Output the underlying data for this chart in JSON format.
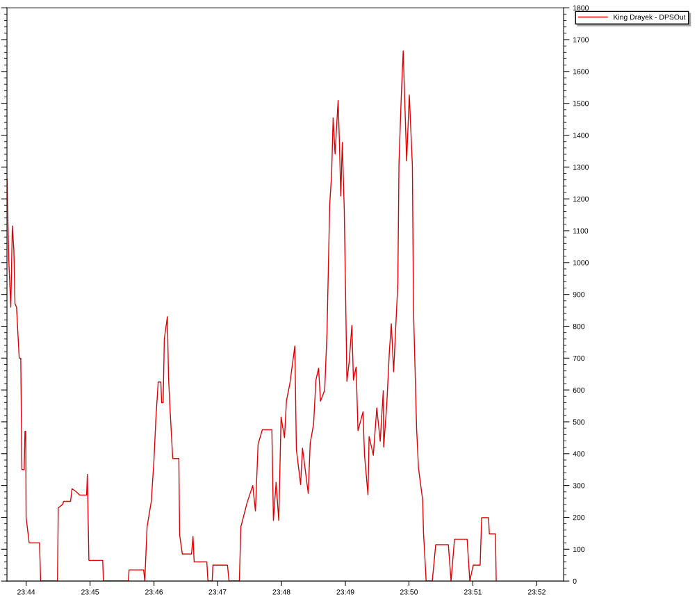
{
  "chart_data": {
    "type": "line",
    "x": [
      23.7283,
      23.7288,
      23.7293,
      23.7297,
      23.7301,
      23.7304,
      23.7308,
      23.7315,
      23.7319,
      23.7322,
      23.7328,
      23.733,
      23.7332,
      23.7333,
      23.7341,
      23.7368,
      23.7371,
      23.7415,
      23.7417,
      23.7428,
      23.7431,
      23.7449,
      23.7453,
      23.7464,
      23.7473,
      23.7491,
      23.7493,
      23.7497,
      23.7533,
      23.7535,
      23.76,
      23.7602,
      23.764,
      23.7643,
      23.7649,
      23.766,
      23.7667,
      23.7672,
      23.7678,
      23.7685,
      23.7687,
      23.7691,
      23.7694,
      23.7702,
      23.7705,
      23.7709,
      23.7716,
      23.7732,
      23.7734,
      23.7741,
      23.7765,
      23.7769,
      23.7772,
      23.7805,
      23.7808,
      23.7819,
      23.7821,
      23.7859,
      23.7863,
      23.789,
      23.7894,
      23.791,
      23.7925,
      23.7932,
      23.7939,
      23.795,
      23.7975,
      23.7979,
      23.7986,
      23.7993,
      23.7999,
      23.8008,
      23.8013,
      23.8022,
      23.8035,
      23.8039,
      23.805,
      23.8055,
      23.807,
      23.8075,
      23.8084,
      23.809,
      23.8097,
      23.8102,
      23.8113,
      23.8119,
      23.8126,
      23.8131,
      23.8135,
      23.814,
      23.8148,
      23.8151,
      23.8155,
      23.8159,
      23.8164,
      23.8168,
      23.8171,
      23.8177,
      23.8184,
      23.8188,
      23.8195,
      23.82,
      23.8213,
      23.8217,
      23.8226,
      23.8229,
      23.824,
      23.8249,
      23.8258,
      23.8266,
      23.8267,
      23.8275,
      23.8282,
      23.8287,
      23.8293,
      23.8304,
      23.8307,
      23.8313,
      23.8318,
      23.8327,
      23.8334,
      23.8342,
      23.8345,
      23.8353,
      23.8358,
      23.8369,
      23.8371,
      23.8378,
      23.8394,
      23.8403,
      23.8436,
      23.8443,
      23.8452,
      23.8485,
      23.8492,
      23.8501,
      23.8519,
      23.8523,
      23.8541,
      23.8543,
      23.8559,
      23.8561
    ],
    "series": [
      {
        "name": "King Drayek - DPSOut",
        "color": "#e00000",
        "values": [
          1262,
          1000,
          860,
          1115,
          1040,
          870,
          860,
          700,
          700,
          350,
          350,
          470,
          470,
          200,
          120,
          120,
          0,
          0,
          230,
          240,
          250,
          250,
          290,
          280,
          270,
          270,
          335,
          65,
          65,
          0,
          0,
          35,
          35,
          0,
          170,
          250,
          380,
          510,
          625,
          625,
          560,
          560,
          760,
          830,
          640,
          540,
          385,
          385,
          145,
          85,
          85,
          140,
          60,
          60,
          0,
          0,
          50,
          50,
          0,
          0,
          170,
          245,
          300,
          220,
          430,
          475,
          475,
          190,
          310,
          190,
          515,
          450,
          565,
          620,
          738,
          413,
          303,
          417,
          275,
          432,
          493,
          631,
          668,
          565,
          600,
          781,
          1181,
          1277,
          1454,
          1341,
          1509,
          1395,
          1209,
          1377,
          1168,
          867,
          627,
          690,
          803,
          631,
          672,
          472,
          531,
          395,
          271,
          454,
          395,
          544,
          439,
          598,
          421,
          552,
          723,
          808,
          657,
          934,
          1312,
          1522,
          1665,
          1319,
          1526,
          1304,
          849,
          480,
          354,
          253,
          153,
          0,
          0,
          114,
          114,
          0,
          131,
          131,
          0,
          50,
          50,
          199,
          199,
          148,
          148,
          0
        ]
      }
    ],
    "xlim": [
      23.7283,
      23.8737
    ],
    "xticks": [
      {
        "value": 23.7333,
        "label": "23:44"
      },
      {
        "value": 23.75,
        "label": "23:45"
      },
      {
        "value": 23.7667,
        "label": "23:46"
      },
      {
        "value": 23.7833,
        "label": "23:47"
      },
      {
        "value": 23.8,
        "label": "23:48"
      },
      {
        "value": 23.8167,
        "label": "23:49"
      },
      {
        "value": 23.8333,
        "label": "23:50"
      },
      {
        "value": 23.85,
        "label": "23:51"
      },
      {
        "value": 23.8667,
        "label": "23:52"
      }
    ],
    "ylim": [
      0,
      1800
    ],
    "yticks": [
      0,
      100,
      200,
      300,
      400,
      500,
      600,
      700,
      800,
      900,
      1000,
      1100,
      1200,
      1300,
      1400,
      1500,
      1600,
      1700,
      1800
    ],
    "grid": false,
    "legend": "top right",
    "marker": "none",
    "line_style": "solid"
  }
}
